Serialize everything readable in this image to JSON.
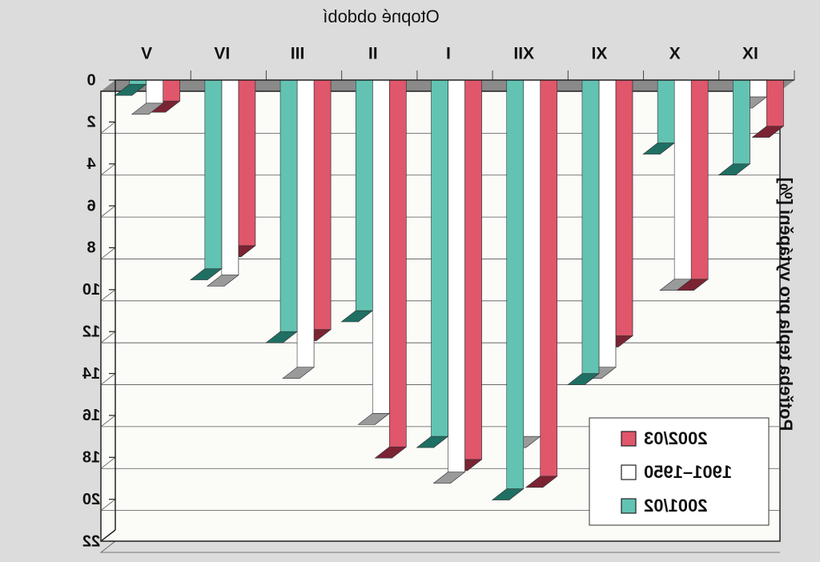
{
  "chart_data": {
    "type": "bar",
    "title": "Otopné období",
    "ylabel": "Potřeba tepla pro vytápění [%]",
    "xlabel": "",
    "categories": [
      "IX",
      "X",
      "XI",
      "XII",
      "I",
      "II",
      "III",
      "IV",
      "V"
    ],
    "ylim": [
      0,
      22
    ],
    "yticks": [
      "0",
      "2",
      "4",
      "6",
      "8",
      "10",
      "12",
      "14",
      "16",
      "18",
      "20",
      "22"
    ],
    "grid": true,
    "orientation": "inverted (bars hang from top), image mirrored horizontally",
    "legend_position": "bottom-right",
    "series": [
      {
        "name": "2001/02",
        "color": "#62c3b3",
        "dark": "#1f6f63",
        "values": [
          4.0,
          3.0,
          14.0,
          19.5,
          17.0,
          11.0,
          12.0,
          9.0,
          0.2
        ]
      },
      {
        "name": "1901–1950",
        "color": "#ffffff",
        "dark": "#9a9a9a",
        "values": [
          0.8,
          9.5,
          13.7,
          17.0,
          18.7,
          15.9,
          13.7,
          9.3,
          1.1
        ]
      },
      {
        "name": "2002/03",
        "color": "#e0566a",
        "dark": "#7a2333",
        "values": [
          2.2,
          9.5,
          12.2,
          18.9,
          18.1,
          17.5,
          11.9,
          7.9,
          1.0
        ]
      }
    ]
  }
}
